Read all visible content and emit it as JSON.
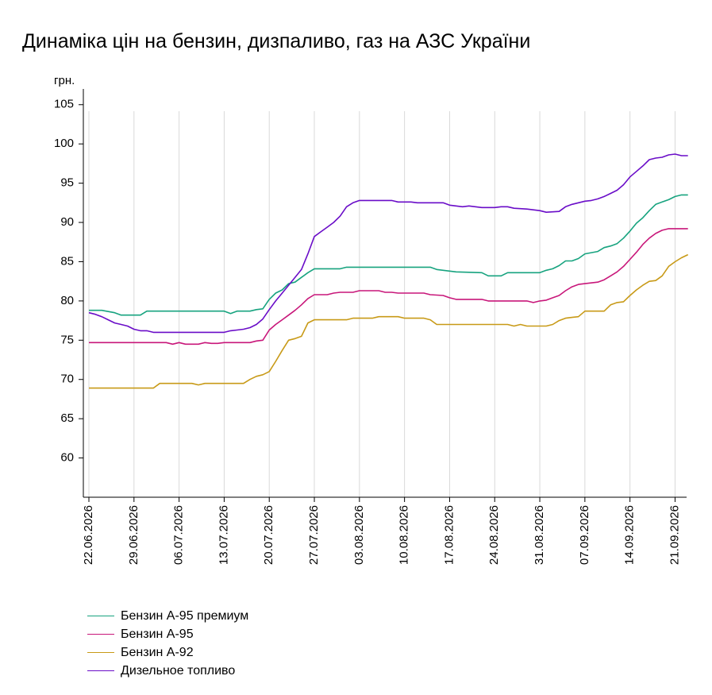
{
  "chart_data": {
    "type": "line",
    "title": "Динаміка цін на бензин, дизпаливо, газ на АЗС України",
    "ylabel": "грн.",
    "xlabel": "",
    "ylim": [
      55,
      107
    ],
    "yticks": [
      60,
      65,
      70,
      75,
      80,
      85,
      90,
      95,
      100,
      105
    ],
    "grid": "vertical",
    "legend_position": "bottom-left",
    "x_ticks": [
      "22.06.2026",
      "29.06.2026",
      "06.07.2026",
      "13.07.2026",
      "20.07.2026",
      "27.07.2026",
      "03.08.2026",
      "10.08.2026",
      "17.08.2026",
      "24.08.2026",
      "31.08.2026",
      "07.09.2026",
      "14.09.2026",
      "21.09.2026"
    ],
    "x_range": [
      "22.06.2026",
      "23.09.2026"
    ],
    "series": [
      {
        "name": "Бензин А-95 премиум",
        "color": "#17a37f",
        "points": [
          [
            "22.06.2026",
            78.8
          ],
          [
            "24.06.2026",
            78.8
          ],
          [
            "26.06.2026",
            78.5
          ],
          [
            "27.06.2026",
            78.2
          ],
          [
            "30.06.2026",
            78.2
          ],
          [
            "01.07.2026",
            78.7
          ],
          [
            "13.07.2026",
            78.7
          ],
          [
            "14.07.2026",
            78.4
          ],
          [
            "15.07.2026",
            78.7
          ],
          [
            "17.07.2026",
            78.7
          ],
          [
            "18.07.2026",
            78.9
          ],
          [
            "19.07.2026",
            79.0
          ],
          [
            "20.07.2026",
            80.2
          ],
          [
            "21.07.2026",
            81.0
          ],
          [
            "22.07.2026",
            81.4
          ],
          [
            "23.07.2026",
            82.2
          ],
          [
            "24.07.2026",
            82.4
          ],
          [
            "25.07.2026",
            83.0
          ],
          [
            "26.07.2026",
            83.6
          ],
          [
            "27.07.2026",
            84.1
          ],
          [
            "31.07.2026",
            84.1
          ],
          [
            "01.08.2026",
            84.3
          ],
          [
            "14.08.2026",
            84.3
          ],
          [
            "15.08.2026",
            84.0
          ],
          [
            "17.08.2026",
            83.8
          ],
          [
            "18.08.2026",
            83.7
          ],
          [
            "22.08.2026",
            83.6
          ],
          [
            "23.08.2026",
            83.2
          ],
          [
            "25.08.2026",
            83.2
          ],
          [
            "26.08.2026",
            83.6
          ],
          [
            "31.08.2026",
            83.6
          ],
          [
            "01.09.2026",
            83.9
          ],
          [
            "02.09.2026",
            84.1
          ],
          [
            "03.09.2026",
            84.5
          ],
          [
            "04.09.2026",
            85.1
          ],
          [
            "05.09.2026",
            85.1
          ],
          [
            "06.09.2026",
            85.4
          ],
          [
            "07.09.2026",
            86.0
          ],
          [
            "09.09.2026",
            86.3
          ],
          [
            "10.09.2026",
            86.8
          ],
          [
            "11.09.2026",
            87.0
          ],
          [
            "12.09.2026",
            87.3
          ],
          [
            "13.09.2026",
            88.0
          ],
          [
            "14.09.2026",
            88.9
          ],
          [
            "15.09.2026",
            89.9
          ],
          [
            "16.09.2026",
            90.6
          ],
          [
            "17.09.2026",
            91.5
          ],
          [
            "18.09.2026",
            92.3
          ],
          [
            "19.09.2026",
            92.6
          ],
          [
            "20.09.2026",
            92.9
          ],
          [
            "21.09.2026",
            93.3
          ],
          [
            "22.09.2026",
            93.5
          ],
          [
            "23.09.2026",
            93.5
          ]
        ]
      },
      {
        "name": "Бензин А-95",
        "color": "#c8177a",
        "points": [
          [
            "22.06.2026",
            74.7
          ],
          [
            "04.07.2026",
            74.7
          ],
          [
            "05.07.2026",
            74.5
          ],
          [
            "06.07.2026",
            74.7
          ],
          [
            "07.07.2026",
            74.5
          ],
          [
            "09.07.2026",
            74.5
          ],
          [
            "10.07.2026",
            74.7
          ],
          [
            "11.07.2026",
            74.6
          ],
          [
            "12.07.2026",
            74.6
          ],
          [
            "13.07.2026",
            74.7
          ],
          [
            "17.07.2026",
            74.7
          ],
          [
            "18.07.2026",
            74.9
          ],
          [
            "19.07.2026",
            75.0
          ],
          [
            "20.07.2026",
            76.3
          ],
          [
            "21.07.2026",
            77.0
          ],
          [
            "22.07.2026",
            77.6
          ],
          [
            "23.07.2026",
            78.2
          ],
          [
            "24.07.2026",
            78.8
          ],
          [
            "25.07.2026",
            79.5
          ],
          [
            "26.07.2026",
            80.3
          ],
          [
            "27.07.2026",
            80.8
          ],
          [
            "29.07.2026",
            80.8
          ],
          [
            "30.07.2026",
            81.0
          ],
          [
            "31.07.2026",
            81.1
          ],
          [
            "02.08.2026",
            81.1
          ],
          [
            "03.08.2026",
            81.3
          ],
          [
            "06.08.2026",
            81.3
          ],
          [
            "07.08.2026",
            81.1
          ],
          [
            "08.08.2026",
            81.1
          ],
          [
            "09.08.2026",
            81.0
          ],
          [
            "13.08.2026",
            81.0
          ],
          [
            "14.08.2026",
            80.8
          ],
          [
            "16.08.2026",
            80.7
          ],
          [
            "17.08.2026",
            80.4
          ],
          [
            "18.08.2026",
            80.2
          ],
          [
            "22.08.2026",
            80.2
          ],
          [
            "23.08.2026",
            80.0
          ],
          [
            "29.08.2026",
            80.0
          ],
          [
            "30.08.2026",
            79.8
          ],
          [
            "31.08.2026",
            80.0
          ],
          [
            "01.09.2026",
            80.1
          ],
          [
            "02.09.2026",
            80.4
          ],
          [
            "03.09.2026",
            80.7
          ],
          [
            "04.09.2026",
            81.3
          ],
          [
            "05.09.2026",
            81.8
          ],
          [
            "06.09.2026",
            82.1
          ],
          [
            "07.09.2026",
            82.2
          ],
          [
            "09.09.2026",
            82.4
          ],
          [
            "10.09.2026",
            82.7
          ],
          [
            "11.09.2026",
            83.2
          ],
          [
            "12.09.2026",
            83.7
          ],
          [
            "13.09.2026",
            84.4
          ],
          [
            "14.09.2026",
            85.3
          ],
          [
            "15.09.2026",
            86.2
          ],
          [
            "16.09.2026",
            87.2
          ],
          [
            "17.09.2026",
            88.0
          ],
          [
            "18.09.2026",
            88.6
          ],
          [
            "19.09.2026",
            89.0
          ],
          [
            "20.09.2026",
            89.2
          ],
          [
            "23.09.2026",
            89.2
          ]
        ]
      },
      {
        "name": "Бензин А-92",
        "color": "#c89a17",
        "points": [
          [
            "22.06.2026",
            68.9
          ],
          [
            "02.07.2026",
            68.9
          ],
          [
            "03.07.2026",
            69.5
          ],
          [
            "08.07.2026",
            69.5
          ],
          [
            "09.07.2026",
            69.3
          ],
          [
            "10.07.2026",
            69.5
          ],
          [
            "16.07.2026",
            69.5
          ],
          [
            "17.07.2026",
            70.0
          ],
          [
            "18.07.2026",
            70.4
          ],
          [
            "19.07.2026",
            70.6
          ],
          [
            "20.07.2026",
            71.0
          ],
          [
            "21.07.2026",
            72.3
          ],
          [
            "22.07.2026",
            73.7
          ],
          [
            "23.07.2026",
            75.0
          ],
          [
            "24.07.2026",
            75.2
          ],
          [
            "25.07.2026",
            75.5
          ],
          [
            "26.07.2026",
            77.2
          ],
          [
            "27.07.2026",
            77.6
          ],
          [
            "01.08.2026",
            77.6
          ],
          [
            "02.08.2026",
            77.8
          ],
          [
            "05.08.2026",
            77.8
          ],
          [
            "06.08.2026",
            78.0
          ],
          [
            "09.08.2026",
            78.0
          ],
          [
            "10.08.2026",
            77.8
          ],
          [
            "13.08.2026",
            77.8
          ],
          [
            "14.08.2026",
            77.6
          ],
          [
            "15.08.2026",
            77.0
          ],
          [
            "26.08.2026",
            77.0
          ],
          [
            "27.08.2026",
            76.8
          ],
          [
            "28.08.2026",
            77.0
          ],
          [
            "29.08.2026",
            76.8
          ],
          [
            "01.09.2026",
            76.8
          ],
          [
            "02.09.2026",
            77.0
          ],
          [
            "03.09.2026",
            77.5
          ],
          [
            "04.09.2026",
            77.8
          ],
          [
            "05.09.2026",
            77.9
          ],
          [
            "06.09.2026",
            78.0
          ],
          [
            "07.09.2026",
            78.7
          ],
          [
            "10.09.2026",
            78.7
          ],
          [
            "11.09.2026",
            79.5
          ],
          [
            "12.09.2026",
            79.8
          ],
          [
            "13.09.2026",
            79.9
          ],
          [
            "14.09.2026",
            80.7
          ],
          [
            "15.09.2026",
            81.4
          ],
          [
            "16.09.2026",
            82.0
          ],
          [
            "17.09.2026",
            82.5
          ],
          [
            "18.09.2026",
            82.6
          ],
          [
            "19.09.2026",
            83.2
          ],
          [
            "20.09.2026",
            84.4
          ],
          [
            "21.09.2026",
            85.0
          ],
          [
            "22.09.2026",
            85.5
          ],
          [
            "23.09.2026",
            85.9
          ]
        ]
      },
      {
        "name": "Дизельное топливо",
        "color": "#6a0dc8",
        "points": [
          [
            "22.06.2026",
            78.5
          ],
          [
            "23.06.2026",
            78.3
          ],
          [
            "24.06.2026",
            78.0
          ],
          [
            "25.06.2026",
            77.6
          ],
          [
            "26.06.2026",
            77.2
          ],
          [
            "27.06.2026",
            77.0
          ],
          [
            "28.06.2026",
            76.8
          ],
          [
            "29.06.2026",
            76.4
          ],
          [
            "30.06.2026",
            76.2
          ],
          [
            "01.07.2026",
            76.2
          ],
          [
            "02.07.2026",
            76.0
          ],
          [
            "13.07.2026",
            76.0
          ],
          [
            "14.07.2026",
            76.2
          ],
          [
            "15.07.2026",
            76.3
          ],
          [
            "16.07.2026",
            76.4
          ],
          [
            "17.07.2026",
            76.6
          ],
          [
            "18.07.2026",
            77.0
          ],
          [
            "19.07.2026",
            77.7
          ],
          [
            "20.07.2026",
            78.9
          ],
          [
            "21.07.2026",
            80.0
          ],
          [
            "22.07.2026",
            81.0
          ],
          [
            "23.07.2026",
            82.0
          ],
          [
            "24.07.2026",
            83.0
          ],
          [
            "25.07.2026",
            84.0
          ],
          [
            "26.07.2026",
            86.0
          ],
          [
            "27.07.2026",
            88.2
          ],
          [
            "28.07.2026",
            88.8
          ],
          [
            "29.07.2026",
            89.4
          ],
          [
            "30.07.2026",
            90.0
          ],
          [
            "31.07.2026",
            90.8
          ],
          [
            "01.08.2026",
            92.0
          ],
          [
            "02.08.2026",
            92.5
          ],
          [
            "03.08.2026",
            92.8
          ],
          [
            "08.08.2026",
            92.8
          ],
          [
            "09.08.2026",
            92.6
          ],
          [
            "11.08.2026",
            92.6
          ],
          [
            "12.08.2026",
            92.5
          ],
          [
            "16.08.2026",
            92.5
          ],
          [
            "17.08.2026",
            92.2
          ],
          [
            "18.08.2026",
            92.1
          ],
          [
            "19.08.2026",
            92.0
          ],
          [
            "20.08.2026",
            92.1
          ],
          [
            "22.08.2026",
            91.9
          ],
          [
            "24.08.2026",
            91.9
          ],
          [
            "25.08.2026",
            92.0
          ],
          [
            "26.08.2026",
            92.0
          ],
          [
            "27.08.2026",
            91.8
          ],
          [
            "29.08.2026",
            91.7
          ],
          [
            "31.08.2026",
            91.5
          ],
          [
            "01.09.2026",
            91.3
          ],
          [
            "03.09.2026",
            91.4
          ],
          [
            "04.09.2026",
            92.0
          ],
          [
            "05.09.2026",
            92.3
          ],
          [
            "06.09.2026",
            92.5
          ],
          [
            "07.09.2026",
            92.7
          ],
          [
            "08.09.2026",
            92.8
          ],
          [
            "09.09.2026",
            93.0
          ],
          [
            "10.09.2026",
            93.3
          ],
          [
            "11.09.2026",
            93.7
          ],
          [
            "12.09.2026",
            94.1
          ],
          [
            "13.09.2026",
            94.8
          ],
          [
            "14.09.2026",
            95.8
          ],
          [
            "15.09.2026",
            96.5
          ],
          [
            "16.09.2026",
            97.2
          ],
          [
            "17.09.2026",
            98.0
          ],
          [
            "18.09.2026",
            98.2
          ],
          [
            "19.09.2026",
            98.3
          ],
          [
            "20.09.2026",
            98.6
          ],
          [
            "21.09.2026",
            98.7
          ],
          [
            "22.09.2026",
            98.5
          ],
          [
            "23.09.2026",
            98.5
          ]
        ]
      }
    ]
  }
}
